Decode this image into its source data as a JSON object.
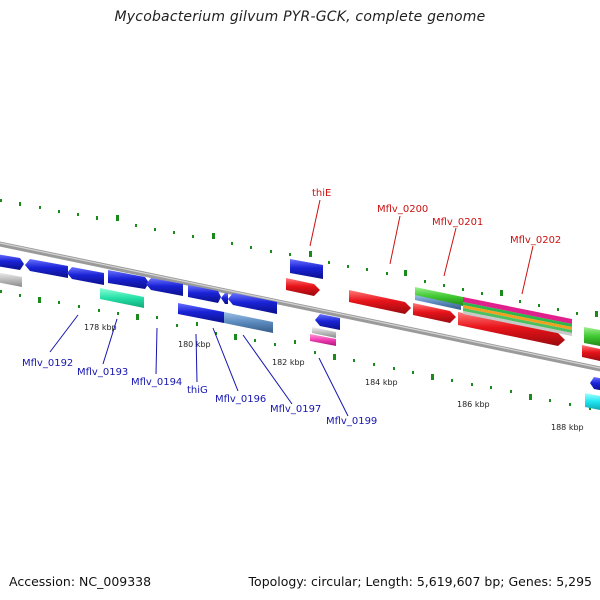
{
  "title": "Mycobacterium gilvum PYR-GCK, complete genome",
  "footer": {
    "accession_label": "Accession:",
    "accession": "NC_009338",
    "topology_label": "Topology:",
    "topology": "circular",
    "length_label": "Length:",
    "length": "5,619,607 bp",
    "genes_label": "Genes:",
    "genes": "5,295"
  },
  "colors": {
    "forward_gene": "#1a23d6",
    "reverse_gene": "#e8141b",
    "backbone": "#8a8a8a",
    "tick": "#1a8a1a",
    "label_forward": "#1515b0",
    "label_reverse": "#cc1111"
  },
  "kbp_ticks": [
    "178 kbp",
    "180 kbp",
    "182 kbp",
    "184 kbp",
    "186 kbp",
    "188 kbp"
  ],
  "gene_labels_below": [
    "Mflv_0192",
    "Mflv_0193",
    "Mflv_0194",
    "thiG",
    "Mflv_0196",
    "Mflv_0197",
    "Mflv_0199"
  ],
  "gene_labels_above": [
    "thiE",
    "Mflv_0200",
    "Mflv_0201",
    "Mflv_0202"
  ]
}
